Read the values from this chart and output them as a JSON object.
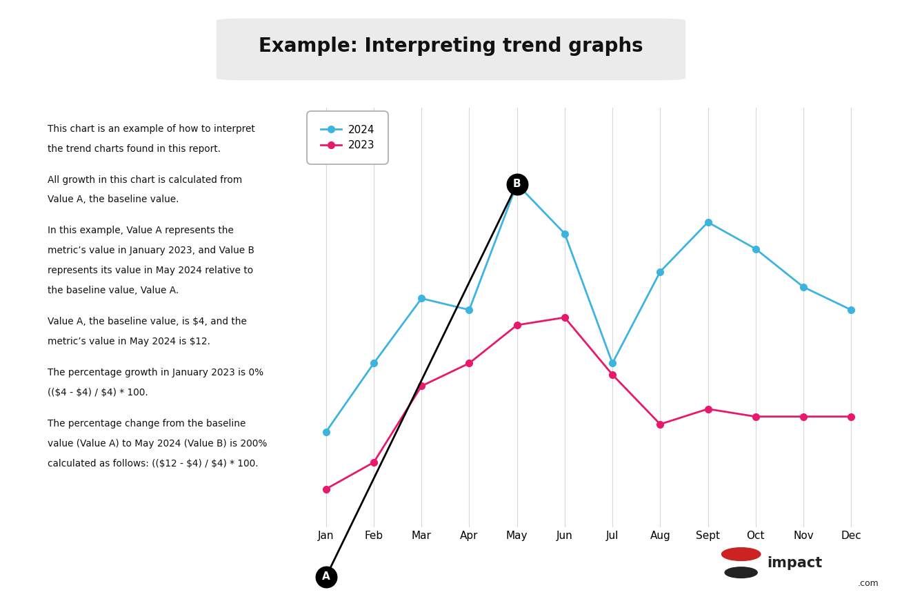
{
  "title": "Example: Interpreting trend graphs",
  "title_fontsize": 20,
  "background_color": "#ffffff",
  "months": [
    "Jan",
    "Feb",
    "Mar",
    "Apr",
    "May",
    "Jun",
    "Jul",
    "Aug",
    "Sept",
    "Oct",
    "Nov",
    "Dec"
  ],
  "data_2024": [
    2.0,
    3.8,
    5.5,
    5.2,
    8.5,
    7.2,
    3.8,
    6.2,
    7.5,
    6.8,
    5.8,
    5.2
  ],
  "data_2023": [
    0.5,
    1.2,
    3.2,
    3.8,
    4.8,
    5.0,
    3.5,
    2.2,
    2.6,
    2.4,
    2.4,
    2.4
  ],
  "color_2024": "#3db4e0",
  "color_2023": "#e8186d",
  "point_A_idx": 0,
  "point_B_idx": 4,
  "annotation_line_color": "#000000",
  "grid_color": "#d8d8d8",
  "text_box_border_color": "#e8186d",
  "text_box_bg": "#ffffff",
  "text_paragraphs": [
    "This chart is an example of how to interpret\nthe trend charts found in this report.",
    "All growth in this chart is calculated from\nValue A, the baseline value.",
    "In this example, Value A represents the\nmetric’s value in January 2023, and Value B\nrepresents its value in May 2024 relative to\nthe baseline value, Value A.",
    "Value A, the baseline value, is $4, and the\nmetric’s value in May 2024 is $12.",
    "The percentage growth in January 2023 is 0%\n(($4 - $4) / $4) * 100.",
    "The percentage change from the baseline\nvalue (Value A) to May 2024 (Value B) is 200%\ncalculated as follows: (($12 - $4) / $4) * 100."
  ],
  "legend_2024": "2024",
  "legend_2023": "2023",
  "impact_red_color": "#cc2222",
  "impact_dark_color": "#222222",
  "impact_gray_color": "#888888"
}
